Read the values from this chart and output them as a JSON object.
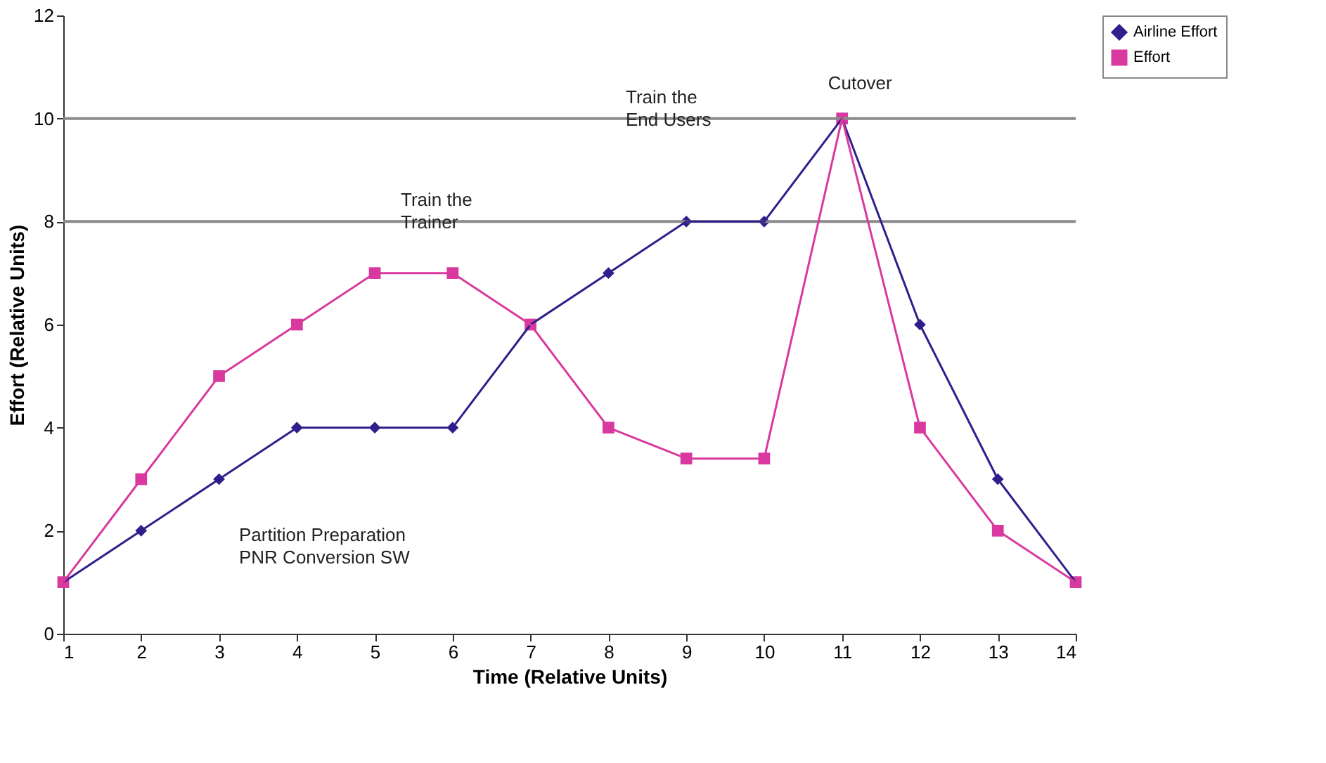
{
  "chart_data": {
    "type": "line",
    "xlabel": "Time (Relative Units)",
    "ylabel": "Effort (Relative Units)",
    "x": [
      1,
      2,
      3,
      4,
      5,
      6,
      7,
      8,
      9,
      10,
      11,
      12,
      13,
      14
    ],
    "xlim": [
      1,
      14
    ],
    "xticks": [
      1,
      2,
      3,
      4,
      5,
      6,
      7,
      8,
      9,
      10,
      11,
      12,
      13,
      14
    ],
    "ylim": [
      0,
      12
    ],
    "yticks": [
      0,
      2,
      4,
      6,
      8,
      10,
      12
    ],
    "grid": false,
    "legend": "right",
    "line_style": "solid",
    "series": [
      {
        "name": "Airline Effort",
        "color": "#2e1f8c",
        "marker": "diamond",
        "values": [
          1,
          2,
          3,
          4,
          4,
          4,
          6,
          7,
          8,
          8,
          10,
          6,
          3,
          1
        ]
      },
      {
        "name": "Effort",
        "color": "#d9399e",
        "marker": "square",
        "values": [
          1,
          3,
          5,
          6,
          7,
          7,
          6,
          4,
          3.4,
          3.4,
          10,
          4,
          2,
          1
        ]
      }
    ],
    "ref_lines": [
      {
        "axis": "y",
        "value": 10,
        "color": "#8a8a8a",
        "label": "Train the\nEnd Users"
      },
      {
        "axis": "y",
        "value": 8,
        "color": "#8a8a8a",
        "label": "Train the\nTrainer"
      }
    ],
    "annotations": [
      {
        "text": "Cutover",
        "x": 11,
        "y": 10
      },
      "Partition Preparation\nPNR Conversion SW"
    ]
  }
}
